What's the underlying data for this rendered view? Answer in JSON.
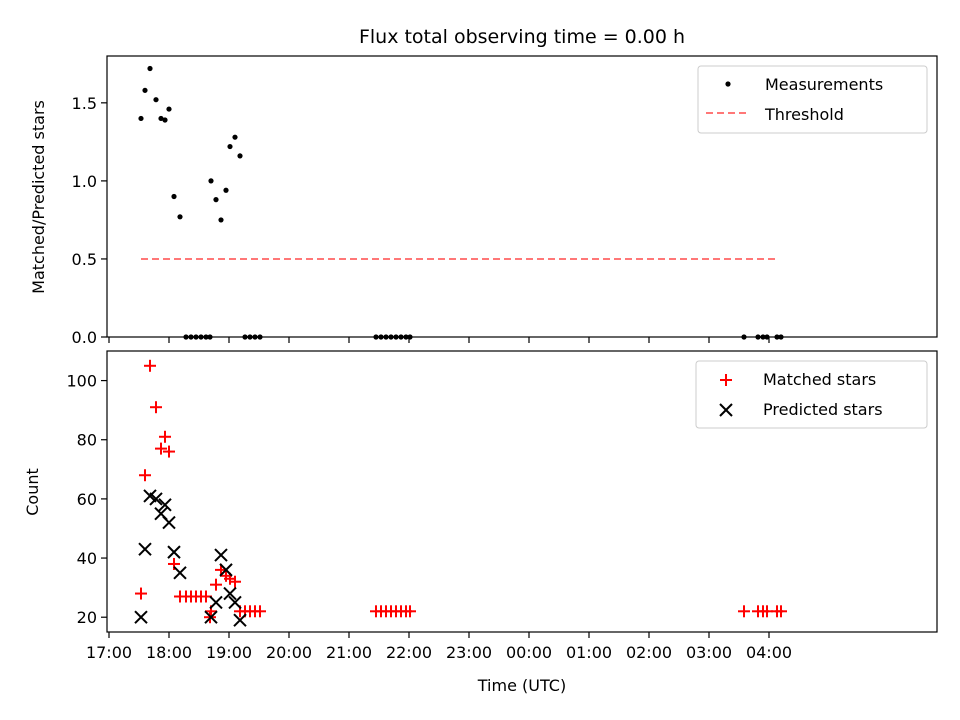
{
  "chart_data": [
    {
      "type": "scatter",
      "title": "Flux total observing time = 0.00 h",
      "xlabel": "",
      "ylabel": "Matched/Predicted stars",
      "ylim": [
        0,
        1.8
      ],
      "yticks": [
        "0.0",
        "0.5",
        "1.0",
        "1.5"
      ],
      "grid": false,
      "legend_position": "top-right",
      "series": [
        {
          "name": "Measurements",
          "marker": "dot",
          "color": "#000000",
          "x": [
            "17:32",
            "17:36",
            "17:41",
            "17:47",
            "17:52",
            "17:56",
            "18:00",
            "18:05",
            "18:11",
            "18:17",
            "18:22",
            "18:27",
            "18:32",
            "18:37",
            "18:41",
            "18:42",
            "18:47",
            "18:52",
            "18:57",
            "19:01",
            "19:06",
            "19:11",
            "19:16",
            "19:21",
            "19:26",
            "19:31",
            "21:27",
            "21:32",
            "21:37",
            "21:42",
            "21:47",
            "21:52",
            "21:57",
            "22:01",
            "03:35",
            "03:49",
            "03:54",
            "03:58",
            "04:08",
            "04:12"
          ],
          "y": [
            1.4,
            1.58,
            1.72,
            1.52,
            1.4,
            1.39,
            1.46,
            0.9,
            0.77,
            0,
            0,
            0,
            0,
            0,
            0,
            1.0,
            0.88,
            0.75,
            0.94,
            1.22,
            1.28,
            1.16,
            0,
            0,
            0,
            0,
            0,
            0,
            0,
            0,
            0,
            0,
            0,
            0,
            0,
            0,
            0,
            0,
            0,
            0
          ]
        },
        {
          "name": "Threshold",
          "style": "dashed-line",
          "color": "#ff7777",
          "x": [
            "17:32",
            "04:07"
          ],
          "y": [
            0.5,
            0.5
          ]
        }
      ]
    },
    {
      "type": "scatter",
      "xlabel": "Time (UTC)",
      "ylabel": "Count",
      "ylim": [
        15,
        110
      ],
      "yticks": [
        "20",
        "40",
        "60",
        "80",
        "100"
      ],
      "xticks": [
        "17:00",
        "18:00",
        "19:00",
        "20:00",
        "21:00",
        "22:00",
        "23:00",
        "00:00",
        "01:00",
        "02:00",
        "03:00",
        "04:00"
      ],
      "x_start": "17:00",
      "grid": false,
      "legend_position": "top-right",
      "series": [
        {
          "name": "Matched stars",
          "marker": "plus",
          "color": "#ff0000",
          "x": [
            "17:32",
            "17:36",
            "17:41",
            "17:47",
            "17:52",
            "17:56",
            "18:00",
            "18:05",
            "18:11",
            "18:17",
            "18:22",
            "18:27",
            "18:32",
            "18:37",
            "18:41",
            "18:42",
            "18:47",
            "18:52",
            "18:57",
            "19:01",
            "19:06",
            "19:11",
            "19:16",
            "19:21",
            "19:26",
            "19:31",
            "21:27",
            "21:32",
            "21:37",
            "21:42",
            "21:47",
            "21:52",
            "21:57",
            "22:01",
            "03:35",
            "03:49",
            "03:54",
            "03:58",
            "04:08",
            "04:12"
          ],
          "y": [
            28,
            68,
            105,
            91,
            77,
            81,
            76,
            38,
            27,
            27,
            27,
            27,
            27,
            27,
            20,
            22,
            31,
            36,
            34,
            33,
            32,
            22,
            22,
            22,
            22,
            22,
            22,
            22,
            22,
            22,
            22,
            22,
            22,
            22,
            22,
            22,
            22,
            22,
            22,
            22
          ]
        },
        {
          "name": "Predicted stars",
          "marker": "x",
          "color": "#000000",
          "x": [
            "17:32",
            "17:36",
            "17:41",
            "17:47",
            "17:52",
            "17:56",
            "18:00",
            "18:05",
            "18:11",
            "18:42",
            "18:47",
            "18:52",
            "18:57",
            "19:01",
            "19:06",
            "19:11"
          ],
          "y": [
            20,
            43,
            61,
            60,
            55,
            58,
            52,
            42,
            35,
            20,
            25,
            41,
            36,
            28,
            25,
            19
          ]
        }
      ]
    }
  ]
}
